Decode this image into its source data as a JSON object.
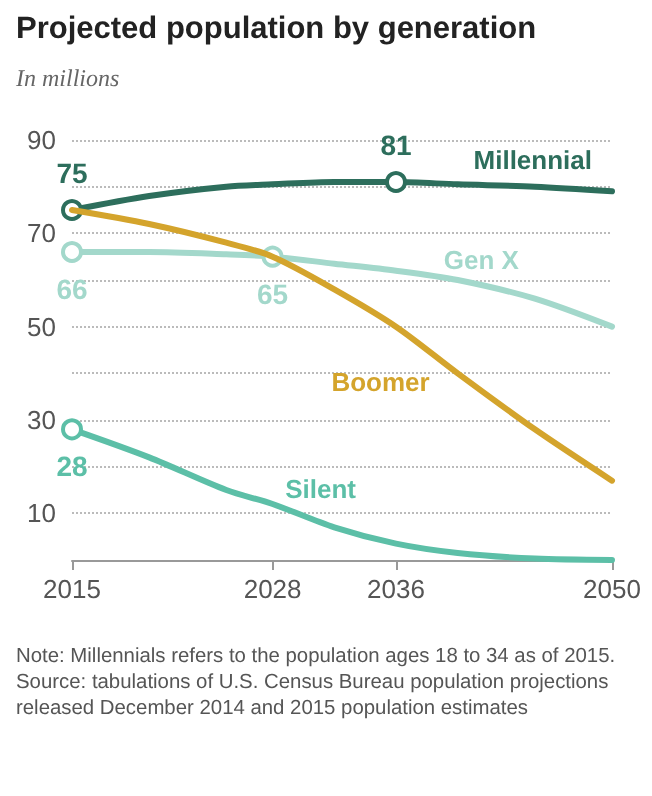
{
  "chart_data": {
    "type": "line",
    "title": "Projected population by generation",
    "subtitle": "In millions",
    "x": [
      2015,
      2020,
      2025,
      2028,
      2032,
      2036,
      2040,
      2045,
      2050
    ],
    "xlim": [
      2015,
      2050
    ],
    "xticks": [
      2015,
      2028,
      2036,
      2050
    ],
    "ylim": [
      0,
      90
    ],
    "yticks": [
      {
        "value": 0,
        "label": null
      },
      10,
      {
        "value": 20,
        "label": null
      },
      30,
      {
        "value": 40,
        "label": null
      },
      50,
      {
        "value": 60,
        "label": null
      },
      70,
      {
        "value": 80,
        "label": null
      },
      90
    ],
    "grid": "y",
    "line_style": "solid",
    "series": [
      {
        "name": "Millennial",
        "color": "#2d6e5c",
        "values": [
          75,
          78,
          80,
          80.5,
          81,
          81,
          80.5,
          80,
          79
        ],
        "value_labels": [
          "75",
          null,
          null,
          null,
          null,
          "81",
          null,
          null,
          null
        ]
      },
      {
        "name": "Gen X",
        "color": "#a3d8cb",
        "values": [
          66,
          66,
          65.5,
          65,
          63.5,
          62,
          60,
          56,
          50
        ],
        "value_labels": [
          "66",
          null,
          null,
          "65",
          null,
          null,
          null,
          null,
          null
        ]
      },
      {
        "name": "Boomer",
        "color": "#d4a42c",
        "values": [
          75,
          72,
          68,
          65,
          58,
          50,
          40,
          28,
          17
        ],
        "value_labels": [
          null,
          null,
          null,
          null,
          null,
          null,
          null,
          null,
          null
        ]
      },
      {
        "name": "Silent",
        "color": "#5cbfa7",
        "values": [
          28,
          22,
          15,
          12,
          7,
          3.5,
          1.5,
          0.3,
          0
        ],
        "value_labels": [
          "28",
          null,
          null,
          null,
          null,
          null,
          null,
          null,
          null
        ]
      }
    ],
    "annotations": [
      "Note: Millennials refers to the population ages 18 to 34 as of 2015.",
      "Source: tabulations of U.S. Census Bureau population projections released December 2014 and 2015 population estimates"
    ]
  }
}
